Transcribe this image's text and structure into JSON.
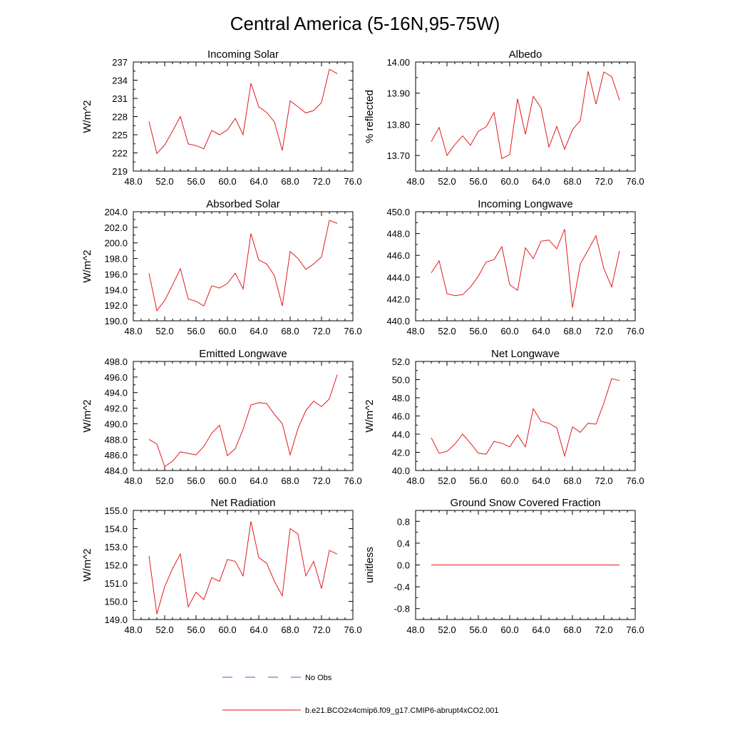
{
  "figure": {
    "title": "Central America (5-16N,95-75W)"
  },
  "legend": {
    "items": [
      {
        "label": "No Obs",
        "color": "#5555cc",
        "style": "dashed"
      },
      {
        "label": "b.e21.BCO2x4cmip6.f09_g17.CMIP6-abrupt4xCO2.001",
        "color": "#e31a1c",
        "style": "solid"
      }
    ]
  },
  "colors": {
    "series": "#e31a1c",
    "obs": "#5555cc",
    "axis": "#000000"
  },
  "chart_data": [
    {
      "id": "incoming-solar",
      "type": "line",
      "title": "Incoming Solar",
      "ylabel": "W/m^2",
      "xlim": [
        48,
        76
      ],
      "ylim": [
        219,
        237
      ],
      "xticks": [
        48,
        52,
        56,
        60,
        64,
        68,
        72,
        76
      ],
      "xtick_labels": [
        "48.0",
        "52.0",
        "56.0",
        "60.0",
        "64.0",
        "68.0",
        "72.0",
        "76.0"
      ],
      "yticks": [
        219,
        222,
        225,
        228,
        231,
        234,
        237
      ],
      "ytick_labels": [
        "219",
        "222",
        "225",
        "228",
        "231",
        "234",
        "237"
      ],
      "x": [
        50,
        51,
        52,
        53,
        54,
        55,
        56,
        57,
        58,
        59,
        60,
        61,
        62,
        63,
        64,
        65,
        66,
        67,
        68,
        69,
        70,
        71,
        72,
        73,
        74
      ],
      "values": [
        227.2,
        221.9,
        223.3,
        225.6,
        228.0,
        223.5,
        223.2,
        222.7,
        225.7,
        225.0,
        225.8,
        227.7,
        225.0,
        233.5,
        229.6,
        228.7,
        227.1,
        222.4,
        230.6,
        229.6,
        228.6,
        229.0,
        230.3,
        235.8,
        235.1
      ]
    },
    {
      "id": "albedo",
      "type": "line",
      "title": "Albedo",
      "ylabel": "% reflected",
      "xlim": [
        48,
        76
      ],
      "ylim": [
        13.65,
        14.0
      ],
      "xticks": [
        48,
        52,
        56,
        60,
        64,
        68,
        72,
        76
      ],
      "xtick_labels": [
        "48.0",
        "52.0",
        "56.0",
        "60.0",
        "64.0",
        "68.0",
        "72.0",
        "76.0"
      ],
      "yticks": [
        13.7,
        13.8,
        13.9,
        14.0
      ],
      "ytick_labels": [
        "13.70",
        "13.80",
        "13.90",
        "14.00"
      ],
      "x": [
        50,
        51,
        52,
        53,
        54,
        55,
        56,
        57,
        58,
        59,
        60,
        61,
        62,
        63,
        64,
        65,
        66,
        67,
        68,
        69,
        70,
        71,
        72,
        73,
        74
      ],
      "values": [
        13.745,
        13.79,
        13.7,
        13.735,
        13.763,
        13.733,
        13.778,
        13.792,
        13.838,
        13.69,
        13.703,
        13.882,
        13.768,
        13.89,
        13.853,
        13.727,
        13.793,
        13.72,
        13.783,
        13.812,
        13.97,
        13.865,
        13.968,
        13.953,
        13.878
      ]
    },
    {
      "id": "absorbed-solar",
      "type": "line",
      "title": "Absorbed Solar",
      "ylabel": "W/m^2",
      "xlim": [
        48,
        76
      ],
      "ylim": [
        190,
        204
      ],
      "xticks": [
        48,
        52,
        56,
        60,
        64,
        68,
        72,
        76
      ],
      "xtick_labels": [
        "48.0",
        "52.0",
        "56.0",
        "60.0",
        "64.0",
        "68.0",
        "72.0",
        "76.0"
      ],
      "yticks": [
        190,
        192,
        194,
        196,
        198,
        200,
        202,
        204
      ],
      "ytick_labels": [
        "190.0",
        "192.0",
        "194.0",
        "196.0",
        "198.0",
        "200.0",
        "202.0",
        "204.0"
      ],
      "x": [
        50,
        51,
        52,
        53,
        54,
        55,
        56,
        57,
        58,
        59,
        60,
        61,
        62,
        63,
        64,
        65,
        66,
        67,
        68,
        69,
        70,
        71,
        72,
        73,
        74
      ],
      "values": [
        196.1,
        191.3,
        192.6,
        194.6,
        196.7,
        192.8,
        192.5,
        191.9,
        194.5,
        194.2,
        194.8,
        196.1,
        194.1,
        201.2,
        197.8,
        197.3,
        195.8,
        191.9,
        198.9,
        198.0,
        196.6,
        197.3,
        198.2,
        202.9,
        202.5
      ]
    },
    {
      "id": "incoming-longwave",
      "type": "line",
      "title": "Incoming Longwave",
      "ylabel": "",
      "xlim": [
        48,
        76
      ],
      "ylim": [
        440,
        450
      ],
      "xticks": [
        48,
        52,
        56,
        60,
        64,
        68,
        72,
        76
      ],
      "xtick_labels": [
        "48.0",
        "52.0",
        "56.0",
        "60.0",
        "64.0",
        "68.0",
        "72.0",
        "76.0"
      ],
      "yticks": [
        440,
        442,
        444,
        446,
        448,
        450
      ],
      "ytick_labels": [
        "440.0",
        "442.0",
        "444.0",
        "446.0",
        "448.0",
        "450.0"
      ],
      "x": [
        50,
        51,
        52,
        53,
        54,
        55,
        56,
        57,
        58,
        59,
        60,
        61,
        62,
        63,
        64,
        65,
        66,
        67,
        68,
        69,
        70,
        71,
        72,
        73,
        74
      ],
      "values": [
        444.4,
        445.5,
        442.5,
        442.3,
        442.4,
        443.1,
        444.1,
        445.4,
        445.6,
        446.8,
        443.3,
        442.8,
        446.7,
        445.7,
        447.3,
        447.4,
        446.6,
        448.4,
        441.2,
        445.2,
        446.5,
        447.8,
        444.8,
        443.1,
        446.4
      ]
    },
    {
      "id": "emitted-longwave",
      "type": "line",
      "title": "Emitted Longwave",
      "ylabel": "W/m^2",
      "xlim": [
        48,
        76
      ],
      "ylim": [
        484,
        498
      ],
      "xticks": [
        48,
        52,
        56,
        60,
        64,
        68,
        72,
        76
      ],
      "xtick_labels": [
        "48.0",
        "52.0",
        "56.0",
        "60.0",
        "64.0",
        "68.0",
        "72.0",
        "76.0"
      ],
      "yticks": [
        484,
        486,
        488,
        490,
        492,
        494,
        496,
        498
      ],
      "ytick_labels": [
        "484.0",
        "486.0",
        "488.0",
        "490.0",
        "492.0",
        "494.0",
        "496.0",
        "498.0"
      ],
      "x": [
        50,
        51,
        52,
        53,
        54,
        55,
        56,
        57,
        58,
        59,
        60,
        61,
        62,
        63,
        64,
        65,
        66,
        67,
        68,
        69,
        70,
        71,
        72,
        73,
        74
      ],
      "values": [
        488.0,
        487.4,
        484.5,
        485.2,
        486.4,
        486.2,
        486.0,
        487.1,
        488.8,
        489.8,
        485.9,
        486.8,
        489.3,
        492.4,
        492.7,
        492.6,
        491.2,
        490.0,
        486.0,
        489.4,
        491.7,
        492.9,
        492.2,
        493.2,
        496.3
      ]
    },
    {
      "id": "net-longwave",
      "type": "line",
      "title": "Net Longwave",
      "ylabel": "W/m^2",
      "xlim": [
        48,
        76
      ],
      "ylim": [
        40,
        52
      ],
      "xticks": [
        48,
        52,
        56,
        60,
        64,
        68,
        72,
        76
      ],
      "xtick_labels": [
        "48.0",
        "52.0",
        "56.0",
        "60.0",
        "64.0",
        "68.0",
        "72.0",
        "76.0"
      ],
      "yticks": [
        40,
        42,
        44,
        46,
        48,
        50,
        52
      ],
      "ytick_labels": [
        "40.0",
        "42.0",
        "44.0",
        "46.0",
        "48.0",
        "50.0",
        "52.0"
      ],
      "x": [
        50,
        51,
        52,
        53,
        54,
        55,
        56,
        57,
        58,
        59,
        60,
        61,
        62,
        63,
        64,
        65,
        66,
        67,
        68,
        69,
        70,
        71,
        72,
        73,
        74
      ],
      "values": [
        43.6,
        41.9,
        42.1,
        42.9,
        44.0,
        43.0,
        41.9,
        41.8,
        43.2,
        43.0,
        42.6,
        43.9,
        42.6,
        46.8,
        45.4,
        45.2,
        44.7,
        41.6,
        44.8,
        44.2,
        45.2,
        45.1,
        47.4,
        50.1,
        49.9
      ]
    },
    {
      "id": "net-radiation",
      "type": "line",
      "title": "Net Radiation",
      "ylabel": "W/m^2",
      "xlim": [
        48,
        76
      ],
      "ylim": [
        149,
        155
      ],
      "xticks": [
        48,
        52,
        56,
        60,
        64,
        68,
        72,
        76
      ],
      "xtick_labels": [
        "48.0",
        "52.0",
        "56.0",
        "60.0",
        "64.0",
        "68.0",
        "72.0",
        "76.0"
      ],
      "yticks": [
        149,
        150,
        151,
        152,
        153,
        154,
        155
      ],
      "ytick_labels": [
        "149.0",
        "150.0",
        "151.0",
        "152.0",
        "153.0",
        "154.0",
        "155.0"
      ],
      "x": [
        50,
        51,
        52,
        53,
        54,
        55,
        56,
        57,
        58,
        59,
        60,
        61,
        62,
        63,
        64,
        65,
        66,
        67,
        68,
        69,
        70,
        71,
        72,
        73,
        74
      ],
      "values": [
        152.5,
        149.3,
        150.8,
        151.8,
        152.6,
        149.7,
        150.5,
        150.1,
        151.3,
        151.1,
        152.3,
        152.2,
        151.4,
        154.4,
        152.4,
        152.1,
        151.1,
        150.3,
        154.0,
        153.7,
        151.4,
        152.2,
        150.7,
        152.8,
        152.6
      ]
    },
    {
      "id": "ground-snow",
      "type": "line",
      "title": "Ground Snow Covered Fraction",
      "ylabel": "unitless",
      "xlim": [
        48,
        76
      ],
      "ylim": [
        -1.0,
        1.0
      ],
      "xticks": [
        48,
        52,
        56,
        60,
        64,
        68,
        72,
        76
      ],
      "xtick_labels": [
        "48.0",
        "52.0",
        "56.0",
        "60.0",
        "64.0",
        "68.0",
        "72.0",
        "76.0"
      ],
      "yticks": [
        -0.8,
        -0.4,
        0.0,
        0.4,
        0.8
      ],
      "ytick_labels": [
        "-0.8",
        "-0.4",
        "0.0",
        "0.4",
        "0.8"
      ],
      "x": [
        50,
        51,
        52,
        53,
        54,
        55,
        56,
        57,
        58,
        59,
        60,
        61,
        62,
        63,
        64,
        65,
        66,
        67,
        68,
        69,
        70,
        71,
        72,
        73,
        74
      ],
      "values": [
        0,
        0,
        0,
        0,
        0,
        0,
        0,
        0,
        0,
        0,
        0,
        0,
        0,
        0,
        0,
        0,
        0,
        0,
        0,
        0,
        0,
        0,
        0,
        0,
        0
      ]
    }
  ]
}
